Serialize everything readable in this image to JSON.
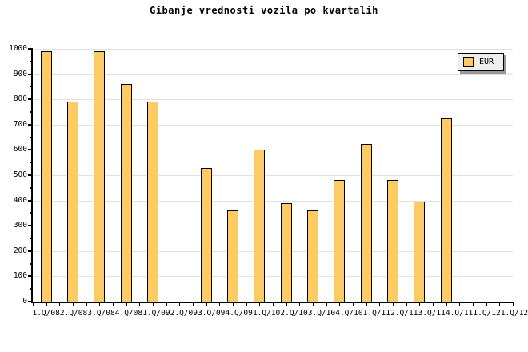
{
  "chart_data": {
    "type": "bar",
    "title": "Gibanje vrednosti vozila po kvartalih",
    "categories": [
      "1.Q/08",
      "2.Q/08",
      "3.Q/08",
      "4.Q/08",
      "1.Q/09",
      "2.Q/09",
      "3.Q/09",
      "4.Q/09",
      "1.Q/10",
      "2.Q/10",
      "3.Q/10",
      "4.Q/10",
      "1.Q/11",
      "2.Q/11",
      "3.Q/11",
      "4.Q/11",
      "1.Q/12",
      "1.Q/12"
    ],
    "series": [
      {
        "name": "EUR",
        "values": [
          990,
          790,
          990,
          860,
          790,
          null,
          530,
          360,
          600,
          390,
          360,
          480,
          625,
          480,
          395,
          725,
          null,
          null
        ]
      }
    ],
    "xlabel": "",
    "ylabel": "",
    "ylim": [
      0,
      1000
    ],
    "ytick_major": 100,
    "ytick_minor": 50,
    "grid": "horizontal-major",
    "legend": {
      "label": "EUR",
      "position": "top-right"
    },
    "colors": {
      "bar_fill": "#FDCB63",
      "bar_border": "#000000",
      "grid": "#E0E0E0",
      "axis": "#000000",
      "legend_bg": "#EEEEEE",
      "legend_shadow": "#999999",
      "background": "#FFFFFF",
      "text": "#000000"
    }
  }
}
